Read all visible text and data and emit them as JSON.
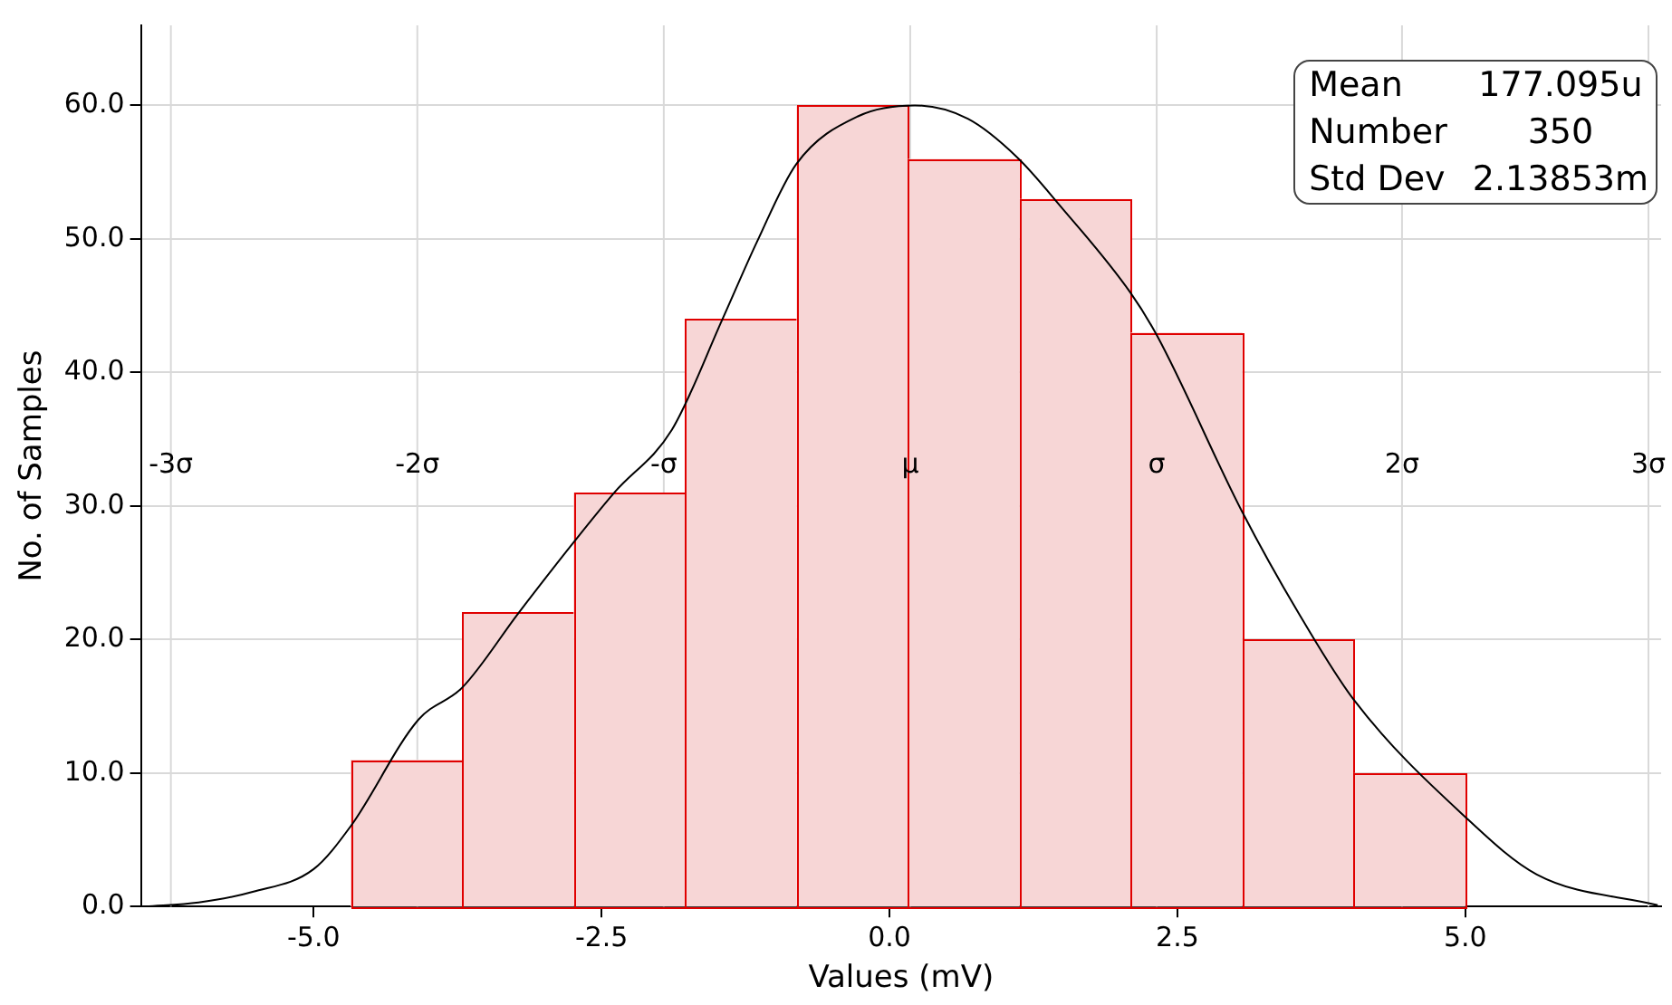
{
  "chart_data": {
    "type": "histogram",
    "xlabel": "Values (mV)",
    "ylabel": "No. of Samples",
    "bins": [
      -4.68,
      -3.712,
      -2.744,
      -1.776,
      -0.808,
      0.16,
      1.128,
      2.096,
      3.064,
      4.032,
      5.0
    ],
    "values": [
      11,
      22,
      31,
      44,
      60,
      56,
      53,
      43,
      20,
      10
    ],
    "color": "#f7d6d6",
    "series": [
      {
        "type": "line",
        "color": "#000000",
        "x": [
          -6.46,
          -6.0,
          -5.53,
          -5.0,
          -4.68,
          -4.09,
          -3.71,
          -3.22,
          -2.75,
          -2.39,
          -1.89,
          -1.45,
          -1.15,
          -0.81,
          -0.27,
          0.22,
          0.68,
          1.11,
          1.48,
          2.09,
          2.32,
          3.06,
          3.55,
          4.03,
          5.0,
          5.62,
          6.67
        ],
        "values": [
          0,
          0.3,
          1.1,
          2.8,
          6.0,
          14.0,
          16.4,
          22,
          27.2,
          31,
          35.7,
          44,
          49.8,
          55.6,
          59.2,
          60,
          59,
          56.1,
          52.5,
          46,
          42.8,
          29.6,
          22,
          15.5,
          6.7,
          2.4,
          0.1
        ]
      }
    ],
    "xlim": [
      -6.5,
      6.7
    ],
    "xticks": [
      {
        "value": -5,
        "label": "-5.0"
      },
      {
        "value": -2.5,
        "label": "-2.5"
      },
      {
        "value": 0,
        "label": "0.0"
      },
      {
        "value": 2.5,
        "label": "2.5"
      },
      {
        "value": 5,
        "label": "5.0"
      }
    ],
    "ylim": [
      0,
      66
    ],
    "yticks": [
      {
        "value": 0,
        "label": "0.0"
      },
      {
        "value": 10,
        "label": "10.0"
      },
      {
        "value": 20,
        "label": "20.0"
      },
      {
        "value": 30,
        "label": "30.0"
      },
      {
        "value": 40,
        "label": "40.0"
      },
      {
        "value": 50,
        "label": "50.0"
      },
      {
        "value": 60,
        "label": "60.0"
      }
    ],
    "grid": "y",
    "legend": false,
    "marker": "none",
    "ref_lines": [
      {
        "axis": "x",
        "value": -6.24,
        "label": "-3σ",
        "color": "#d9d9d9"
      },
      {
        "axis": "x",
        "value": -4.1,
        "label": "-2σ",
        "color": "#d9d9d9"
      },
      {
        "axis": "x",
        "value": -1.96,
        "label": "-σ",
        "color": "#d9d9d9"
      },
      {
        "axis": "x",
        "value": 0.18,
        "label": "μ",
        "color": "#d9d9d9"
      },
      {
        "axis": "x",
        "value": 2.32,
        "label": "σ",
        "color": "#d9d9d9"
      },
      {
        "axis": "x",
        "value": 4.45,
        "label": "2σ",
        "color": "#d9d9d9"
      },
      {
        "axis": "x",
        "value": 6.59,
        "label": "3σ",
        "color": "#d9d9d9"
      }
    ],
    "annotations": [
      "Mean",
      "177.095u",
      "Number",
      "350",
      "Std Dev",
      "2.13853m"
    ]
  }
}
